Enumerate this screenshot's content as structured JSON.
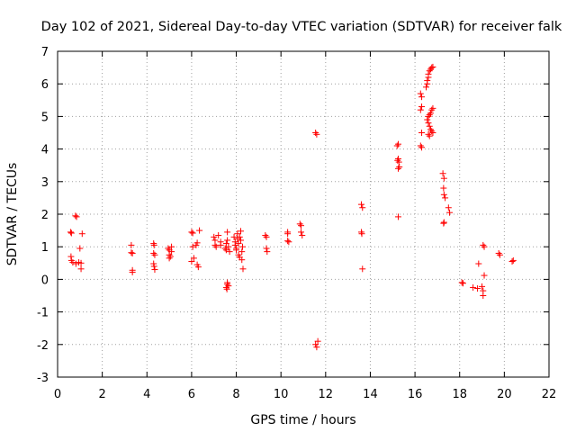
{
  "chart_data": {
    "type": "scatter",
    "title": "Day 102 of 2021, Sidereal Day-to-day VTEC variation (SDTVAR) for receiver falk",
    "xlabel": "GPS time / hours",
    "ylabel": "SDTVAR / TECUs",
    "xlim": [
      0,
      22
    ],
    "ylim": [
      -3,
      7
    ],
    "xticks": [
      0,
      2,
      4,
      6,
      8,
      10,
      12,
      14,
      16,
      18,
      20,
      22
    ],
    "yticks": [
      -3,
      -2,
      -1,
      0,
      1,
      2,
      3,
      4,
      5,
      6,
      7
    ],
    "grid": true,
    "marker": "+",
    "color": "#ff0000",
    "series": [
      {
        "name": "SDTVAR",
        "points": [
          [
            0.58,
            1.45
          ],
          [
            0.62,
            1.42
          ],
          [
            0.6,
            0.7
          ],
          [
            0.62,
            0.58
          ],
          [
            0.68,
            0.52
          ],
          [
            0.8,
            1.95
          ],
          [
            0.85,
            1.92
          ],
          [
            0.82,
            0.48
          ],
          [
            0.95,
            0.52
          ],
          [
            1.0,
            0.95
          ],
          [
            1.05,
            0.5
          ],
          [
            1.05,
            0.32
          ],
          [
            1.1,
            1.4
          ],
          [
            3.3,
            1.05
          ],
          [
            3.3,
            0.82
          ],
          [
            3.35,
            0.8
          ],
          [
            3.35,
            0.28
          ],
          [
            3.35,
            0.22
          ],
          [
            4.3,
            1.1
          ],
          [
            4.32,
            1.05
          ],
          [
            4.3,
            0.8
          ],
          [
            4.35,
            0.75
          ],
          [
            4.3,
            0.48
          ],
          [
            4.32,
            0.4
          ],
          [
            4.35,
            0.3
          ],
          [
            4.95,
            0.95
          ],
          [
            5.0,
            0.9
          ],
          [
            5.0,
            0.75
          ],
          [
            5.05,
            0.7
          ],
          [
            5.0,
            0.65
          ],
          [
            5.1,
            1.0
          ],
          [
            5.1,
            0.85
          ],
          [
            6.0,
            1.45
          ],
          [
            6.05,
            1.42
          ],
          [
            6.05,
            1.0
          ],
          [
            6.1,
            0.65
          ],
          [
            6.0,
            0.55
          ],
          [
            6.2,
            1.05
          ],
          [
            6.25,
            1.12
          ],
          [
            6.25,
            0.45
          ],
          [
            6.3,
            0.38
          ],
          [
            6.35,
            1.5
          ],
          [
            7.0,
            1.3
          ],
          [
            7.05,
            1.2
          ],
          [
            7.05,
            1.05
          ],
          [
            7.1,
            1.0
          ],
          [
            7.2,
            1.35
          ],
          [
            7.3,
            1.15
          ],
          [
            7.3,
            1.05
          ],
          [
            7.5,
            0.95
          ],
          [
            7.55,
            1.1
          ],
          [
            7.55,
            0.9
          ],
          [
            7.6,
            1.2
          ],
          [
            7.6,
            1.45
          ],
          [
            7.6,
            -0.1
          ],
          [
            7.6,
            -0.15
          ],
          [
            7.55,
            -0.25
          ],
          [
            7.58,
            -0.3
          ],
          [
            7.65,
            -0.2
          ],
          [
            7.65,
            1.0
          ],
          [
            7.7,
            0.85
          ],
          [
            7.9,
            1.3
          ],
          [
            7.95,
            1.15
          ],
          [
            7.95,
            1.05
          ],
          [
            8.0,
            0.95
          ],
          [
            8.0,
            0.9
          ],
          [
            8.05,
            1.4
          ],
          [
            8.05,
            1.25
          ],
          [
            8.1,
            1.1
          ],
          [
            8.1,
            0.75
          ],
          [
            8.15,
            0.68
          ],
          [
            8.15,
            1.3
          ],
          [
            8.2,
            1.2
          ],
          [
            8.2,
            1.48
          ],
          [
            8.25,
            0.85
          ],
          [
            8.25,
            0.6
          ],
          [
            8.3,
            0.32
          ],
          [
            8.28,
            1.0
          ],
          [
            9.3,
            1.35
          ],
          [
            9.35,
            1.3
          ],
          [
            9.35,
            0.95
          ],
          [
            9.38,
            0.85
          ],
          [
            10.3,
            1.45
          ],
          [
            10.3,
            1.4
          ],
          [
            10.3,
            1.18
          ],
          [
            10.35,
            1.15
          ],
          [
            10.85,
            1.7
          ],
          [
            10.9,
            1.65
          ],
          [
            10.9,
            1.45
          ],
          [
            10.95,
            1.35
          ],
          [
            11.55,
            4.5
          ],
          [
            11.6,
            4.45
          ],
          [
            11.55,
            -2.0
          ],
          [
            11.6,
            -2.08
          ],
          [
            11.65,
            -1.9
          ],
          [
            13.6,
            2.3
          ],
          [
            13.65,
            2.2
          ],
          [
            13.6,
            1.45
          ],
          [
            13.62,
            1.4
          ],
          [
            13.65,
            0.32
          ],
          [
            15.2,
            4.1
          ],
          [
            15.25,
            4.15
          ],
          [
            15.25,
            3.7
          ],
          [
            15.22,
            3.65
          ],
          [
            15.28,
            3.6
          ],
          [
            15.3,
            3.45
          ],
          [
            15.25,
            3.4
          ],
          [
            15.25,
            1.92
          ],
          [
            16.25,
            5.7
          ],
          [
            16.3,
            5.6
          ],
          [
            16.3,
            5.3
          ],
          [
            16.25,
            5.2
          ],
          [
            16.3,
            4.5
          ],
          [
            16.25,
            4.1
          ],
          [
            16.3,
            4.05
          ],
          [
            16.5,
            5.9
          ],
          [
            16.55,
            6.0
          ],
          [
            16.55,
            6.1
          ],
          [
            16.6,
            6.2
          ],
          [
            16.6,
            6.3
          ],
          [
            16.65,
            6.4
          ],
          [
            16.7,
            6.45
          ],
          [
            16.75,
            6.5
          ],
          [
            16.8,
            6.52
          ],
          [
            16.6,
            5.0
          ],
          [
            16.65,
            5.05
          ],
          [
            16.7,
            5.1
          ],
          [
            16.75,
            5.2
          ],
          [
            16.8,
            5.25
          ],
          [
            16.6,
            4.8
          ],
          [
            16.65,
            4.7
          ],
          [
            16.7,
            4.6
          ],
          [
            16.75,
            4.55
          ],
          [
            16.8,
            4.5
          ],
          [
            16.6,
            4.45
          ],
          [
            16.65,
            4.4
          ],
          [
            16.55,
            4.9
          ],
          [
            17.25,
            3.25
          ],
          [
            17.3,
            3.1
          ],
          [
            17.28,
            2.8
          ],
          [
            17.3,
            2.6
          ],
          [
            17.35,
            2.5
          ],
          [
            17.5,
            2.2
          ],
          [
            17.55,
            2.05
          ],
          [
            17.3,
            1.75
          ],
          [
            17.28,
            1.72
          ],
          [
            18.1,
            -0.1
          ],
          [
            18.15,
            -0.12
          ],
          [
            18.6,
            -0.25
          ],
          [
            18.8,
            -0.28
          ],
          [
            18.85,
            0.48
          ],
          [
            19.0,
            -0.22
          ],
          [
            19.05,
            -0.35
          ],
          [
            19.05,
            -0.5
          ],
          [
            19.1,
            0.12
          ],
          [
            19.05,
            1.05
          ],
          [
            19.1,
            1.0
          ],
          [
            19.75,
            0.8
          ],
          [
            19.8,
            0.75
          ],
          [
            20.35,
            0.55
          ],
          [
            20.4,
            0.58
          ]
        ]
      }
    ]
  }
}
